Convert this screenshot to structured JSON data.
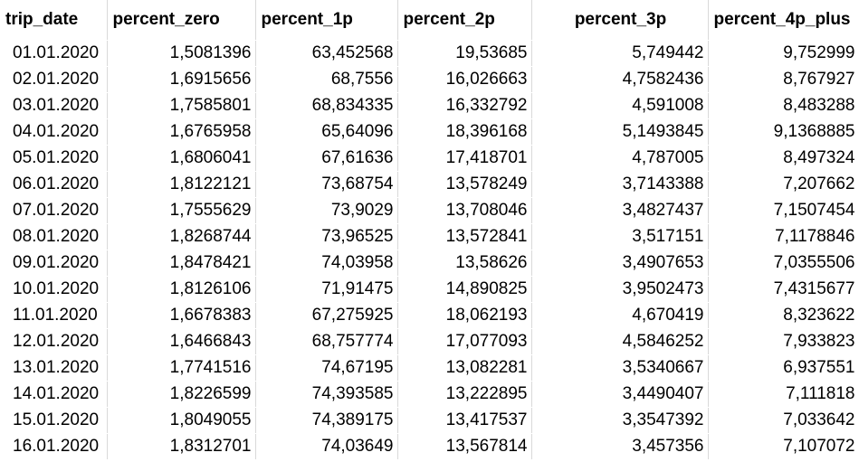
{
  "sheet": {
    "headers": [
      "trip_date",
      "percent_zero",
      "percent_1p",
      "percent_2p",
      "percent_3p",
      "percent_4p_plus"
    ],
    "rows": [
      [
        "01.01.2020",
        "1,5081396",
        "63,452568",
        "19,53685",
        "5,749442",
        "9,752999"
      ],
      [
        "02.01.2020",
        "1,6915656",
        "68,7556",
        "16,026663",
        "4,7582436",
        "8,767927"
      ],
      [
        "03.01.2020",
        "1,7585801",
        "68,834335",
        "16,332792",
        "4,591008",
        "8,483288"
      ],
      [
        "04.01.2020",
        "1,6765958",
        "65,64096",
        "18,396168",
        "5,1493845",
        "9,1368885"
      ],
      [
        "05.01.2020",
        "1,6806041",
        "67,61636",
        "17,418701",
        "4,787005",
        "8,497324"
      ],
      [
        "06.01.2020",
        "1,8122121",
        "73,68754",
        "13,578249",
        "3,7143388",
        "7,207662"
      ],
      [
        "07.01.2020",
        "1,7555629",
        "73,9029",
        "13,708046",
        "3,4827437",
        "7,1507454"
      ],
      [
        "08.01.2020",
        "1,8268744",
        "73,96525",
        "13,572841",
        "3,517151",
        "7,1178846"
      ],
      [
        "09.01.2020",
        "1,8478421",
        "74,03958",
        "13,58626",
        "3,4907653",
        "7,0355506"
      ],
      [
        "10.01.2020",
        "1,8126106",
        "71,91475",
        "14,890825",
        "3,9502473",
        "7,4315677"
      ],
      [
        "11.01.2020",
        "1,6678383",
        "67,275925",
        "18,062193",
        "4,670419",
        "8,323622"
      ],
      [
        "12.01.2020",
        "1,6466843",
        "68,757774",
        "17,077093",
        "4,5846252",
        "7,933823"
      ],
      [
        "13.01.2020",
        "1,7741516",
        "74,67195",
        "13,082281",
        "3,5340667",
        "6,937551"
      ],
      [
        "14.01.2020",
        "1,8226599",
        "74,393585",
        "13,222895",
        "3,4490407",
        "7,111818"
      ],
      [
        "15.01.2020",
        "1,8049055",
        "74,389175",
        "13,417537",
        "3,3547392",
        "7,033642"
      ],
      [
        "16.01.2020",
        "1,8312701",
        "74,03649",
        "13,567814",
        "3,457356",
        "7,107072"
      ]
    ]
  }
}
